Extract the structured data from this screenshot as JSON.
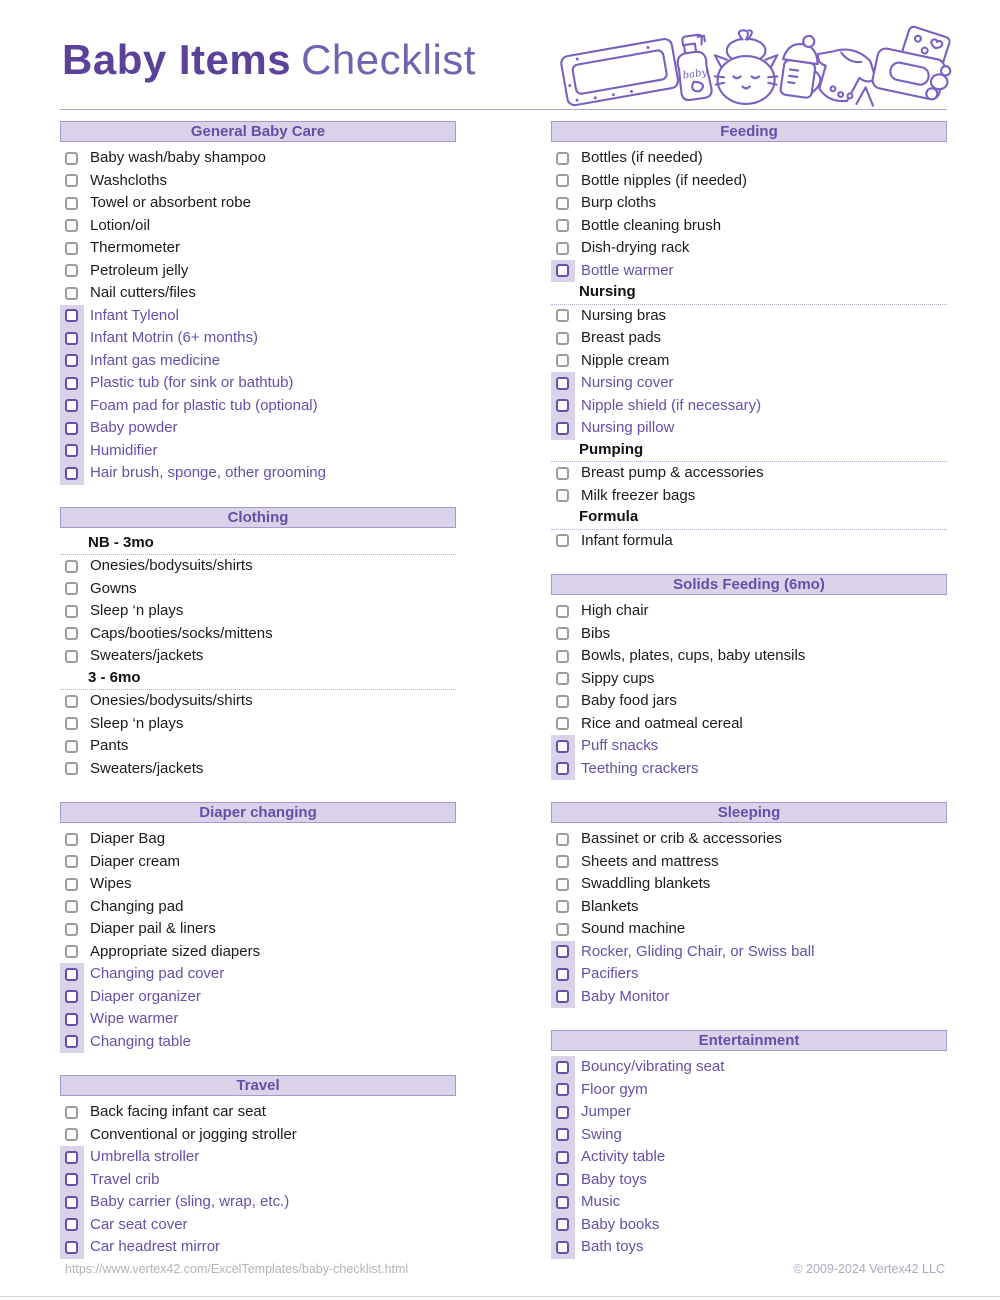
{
  "page": {
    "title": {
      "bold": "Baby Items",
      "regular": "Checklist"
    },
    "illustration_label": "baby",
    "footer": {
      "url": "https://www.vertex42.com/ExcelTemplates/baby-checklist.html",
      "copyright": "© 2009-2024 Vertex42 LLC"
    }
  },
  "colors": {
    "title_bold": "#5b4199",
    "title_light": "#7263ae",
    "section_header_text": "#674ea7",
    "section_header_fill": "#d9d2e9",
    "section_header_border": "#a699ce",
    "standard_item_text": "#1b1b1b",
    "standard_checkbox_border": "#9c9c9c",
    "highlight_item_text": "#674ea7",
    "highlight_checkbox_border": "#664fa8",
    "highlight_strip_fill": "#d9d2e9",
    "illustration_stroke": "#7b61bf"
  },
  "icons": {
    "checkbox": "empty-rounded-square-checkbox",
    "illustration": "baby-items-line-art"
  },
  "columns": [
    {
      "sections": [
        {
          "title": "General Baby Care",
          "rows": [
            {
              "type": "item",
              "label": "Baby wash/baby shampoo",
              "variant": "standard"
            },
            {
              "type": "item",
              "label": "Washcloths",
              "variant": "standard"
            },
            {
              "type": "item",
              "label": "Towel or absorbent robe",
              "variant": "standard"
            },
            {
              "type": "item",
              "label": "Lotion/oil",
              "variant": "standard"
            },
            {
              "type": "item",
              "label": "Thermometer",
              "variant": "standard"
            },
            {
              "type": "item",
              "label": "Petroleum jelly",
              "variant": "standard"
            },
            {
              "type": "item",
              "label": "Nail cutters/files",
              "variant": "standard"
            },
            {
              "type": "item",
              "label": "Infant Tylenol",
              "variant": "highlight"
            },
            {
              "type": "item",
              "label": "Infant Motrin (6+ months)",
              "variant": "highlight"
            },
            {
              "type": "item",
              "label": "Infant gas medicine",
              "variant": "highlight"
            },
            {
              "type": "item",
              "label": "Plastic tub (for sink or bathtub)",
              "variant": "highlight"
            },
            {
              "type": "item",
              "label": "Foam pad for plastic tub (optional)",
              "variant": "highlight"
            },
            {
              "type": "item",
              "label": "Baby powder",
              "variant": "highlight"
            },
            {
              "type": "item",
              "label": "Humidifier",
              "variant": "highlight"
            },
            {
              "type": "item",
              "label": "Hair brush, sponge, other grooming",
              "variant": "highlight"
            }
          ]
        },
        {
          "title": "Clothing",
          "rows": [
            {
              "type": "subheader",
              "label": "NB - 3mo"
            },
            {
              "type": "item",
              "label": "Onesies/bodysuits/shirts",
              "variant": "standard"
            },
            {
              "type": "item",
              "label": "Gowns",
              "variant": "standard"
            },
            {
              "type": "item",
              "label": "Sleep ‘n plays",
              "variant": "standard"
            },
            {
              "type": "item",
              "label": "Caps/booties/socks/mittens",
              "variant": "standard"
            },
            {
              "type": "item",
              "label": "Sweaters/jackets",
              "variant": "standard"
            },
            {
              "type": "subheader",
              "label": "3 - 6mo"
            },
            {
              "type": "item",
              "label": "Onesies/bodysuits/shirts",
              "variant": "standard"
            },
            {
              "type": "item",
              "label": "Sleep ‘n plays",
              "variant": "standard"
            },
            {
              "type": "item",
              "label": "Pants",
              "variant": "standard"
            },
            {
              "type": "item",
              "label": "Sweaters/jackets",
              "variant": "standard"
            }
          ]
        },
        {
          "title": "Diaper changing",
          "rows": [
            {
              "type": "item",
              "label": "Diaper Bag",
              "variant": "standard"
            },
            {
              "type": "item",
              "label": "Diaper cream",
              "variant": "standard"
            },
            {
              "type": "item",
              "label": "Wipes",
              "variant": "standard"
            },
            {
              "type": "item",
              "label": "Changing pad",
              "variant": "standard"
            },
            {
              "type": "item",
              "label": "Diaper pail & liners",
              "variant": "standard"
            },
            {
              "type": "item",
              "label": "Appropriate sized diapers",
              "variant": "standard"
            },
            {
              "type": "item",
              "label": "Changing pad cover",
              "variant": "highlight"
            },
            {
              "type": "item",
              "label": "Diaper organizer",
              "variant": "highlight"
            },
            {
              "type": "item",
              "label": "Wipe warmer",
              "variant": "highlight"
            },
            {
              "type": "item",
              "label": "Changing table",
              "variant": "highlight"
            }
          ]
        },
        {
          "title": "Travel",
          "rows": [
            {
              "type": "item",
              "label": "Back facing infant car seat",
              "variant": "standard"
            },
            {
              "type": "item",
              "label": "Conventional or jogging stroller",
              "variant": "standard"
            },
            {
              "type": "item",
              "label": "Umbrella stroller",
              "variant": "highlight"
            },
            {
              "type": "item",
              "label": "Travel crib",
              "variant": "highlight"
            },
            {
              "type": "item",
              "label": "Baby carrier (sling, wrap, etc.)",
              "variant": "highlight"
            },
            {
              "type": "item",
              "label": "Car seat cover",
              "variant": "highlight"
            },
            {
              "type": "item",
              "label": "Car headrest mirror",
              "variant": "highlight"
            }
          ]
        }
      ]
    },
    {
      "sections": [
        {
          "title": "Feeding",
          "rows": [
            {
              "type": "item",
              "label": "Bottles (if needed)",
              "variant": "standard"
            },
            {
              "type": "item",
              "label": "Bottle nipples (if needed)",
              "variant": "standard"
            },
            {
              "type": "item",
              "label": "Burp cloths",
              "variant": "standard"
            },
            {
              "type": "item",
              "label": "Bottle cleaning brush",
              "variant": "standard"
            },
            {
              "type": "item",
              "label": "Dish-drying rack",
              "variant": "standard"
            },
            {
              "type": "item",
              "label": "Bottle warmer",
              "variant": "highlight"
            },
            {
              "type": "subheader",
              "label": "Nursing"
            },
            {
              "type": "item",
              "label": "Nursing bras",
              "variant": "standard"
            },
            {
              "type": "item",
              "label": "Breast pads",
              "variant": "standard"
            },
            {
              "type": "item",
              "label": "Nipple cream",
              "variant": "standard"
            },
            {
              "type": "item",
              "label": "Nursing cover",
              "variant": "highlight"
            },
            {
              "type": "item",
              "label": "Nipple shield (if necessary)",
              "variant": "highlight"
            },
            {
              "type": "item",
              "label": "Nursing pillow",
              "variant": "highlight"
            },
            {
              "type": "subheader",
              "label": "Pumping"
            },
            {
              "type": "item",
              "label": "Breast pump & accessories",
              "variant": "standard"
            },
            {
              "type": "item",
              "label": "Milk freezer bags",
              "variant": "standard"
            },
            {
              "type": "subheader",
              "label": "Formula"
            },
            {
              "type": "item",
              "label": "Infant formula",
              "variant": "standard"
            }
          ]
        },
        {
          "title": "Solids Feeding (6mo)",
          "rows": [
            {
              "type": "item",
              "label": "High chair",
              "variant": "standard"
            },
            {
              "type": "item",
              "label": "Bibs",
              "variant": "standard"
            },
            {
              "type": "item",
              "label": "Bowls, plates, cups, baby utensils",
              "variant": "standard"
            },
            {
              "type": "item",
              "label": "Sippy cups",
              "variant": "standard"
            },
            {
              "type": "item",
              "label": "Baby food jars",
              "variant": "standard"
            },
            {
              "type": "item",
              "label": "Rice and oatmeal cereal",
              "variant": "standard"
            },
            {
              "type": "item",
              "label": "Puff snacks",
              "variant": "highlight"
            },
            {
              "type": "item",
              "label": "Teething crackers",
              "variant": "highlight"
            }
          ]
        },
        {
          "title": "Sleeping",
          "rows": [
            {
              "type": "item",
              "label": "Bassinet or crib & accessories",
              "variant": "standard"
            },
            {
              "type": "item",
              "label": "Sheets and mattress",
              "variant": "standard"
            },
            {
              "type": "item",
              "label": "Swaddling blankets",
              "variant": "standard"
            },
            {
              "type": "item",
              "label": "Blankets",
              "variant": "standard"
            },
            {
              "type": "item",
              "label": "Sound machine",
              "variant": "standard"
            },
            {
              "type": "item",
              "label": "Rocker, Gliding Chair, or Swiss ball",
              "variant": "highlight"
            },
            {
              "type": "item",
              "label": "Pacifiers",
              "variant": "highlight"
            },
            {
              "type": "item",
              "label": "Baby Monitor",
              "variant": "highlight"
            }
          ]
        },
        {
          "title": "Entertainment",
          "rows": [
            {
              "type": "item",
              "label": "Bouncy/vibrating seat",
              "variant": "highlight"
            },
            {
              "type": "item",
              "label": "Floor gym",
              "variant": "highlight"
            },
            {
              "type": "item",
              "label": "Jumper",
              "variant": "highlight"
            },
            {
              "type": "item",
              "label": "Swing",
              "variant": "highlight"
            },
            {
              "type": "item",
              "label": "Activity table",
              "variant": "highlight"
            },
            {
              "type": "item",
              "label": "Baby toys",
              "variant": "highlight"
            },
            {
              "type": "item",
              "label": "Music",
              "variant": "highlight"
            },
            {
              "type": "item",
              "label": "Baby books",
              "variant": "highlight"
            },
            {
              "type": "item",
              "label": "Bath toys",
              "variant": "highlight"
            }
          ]
        }
      ]
    }
  ]
}
